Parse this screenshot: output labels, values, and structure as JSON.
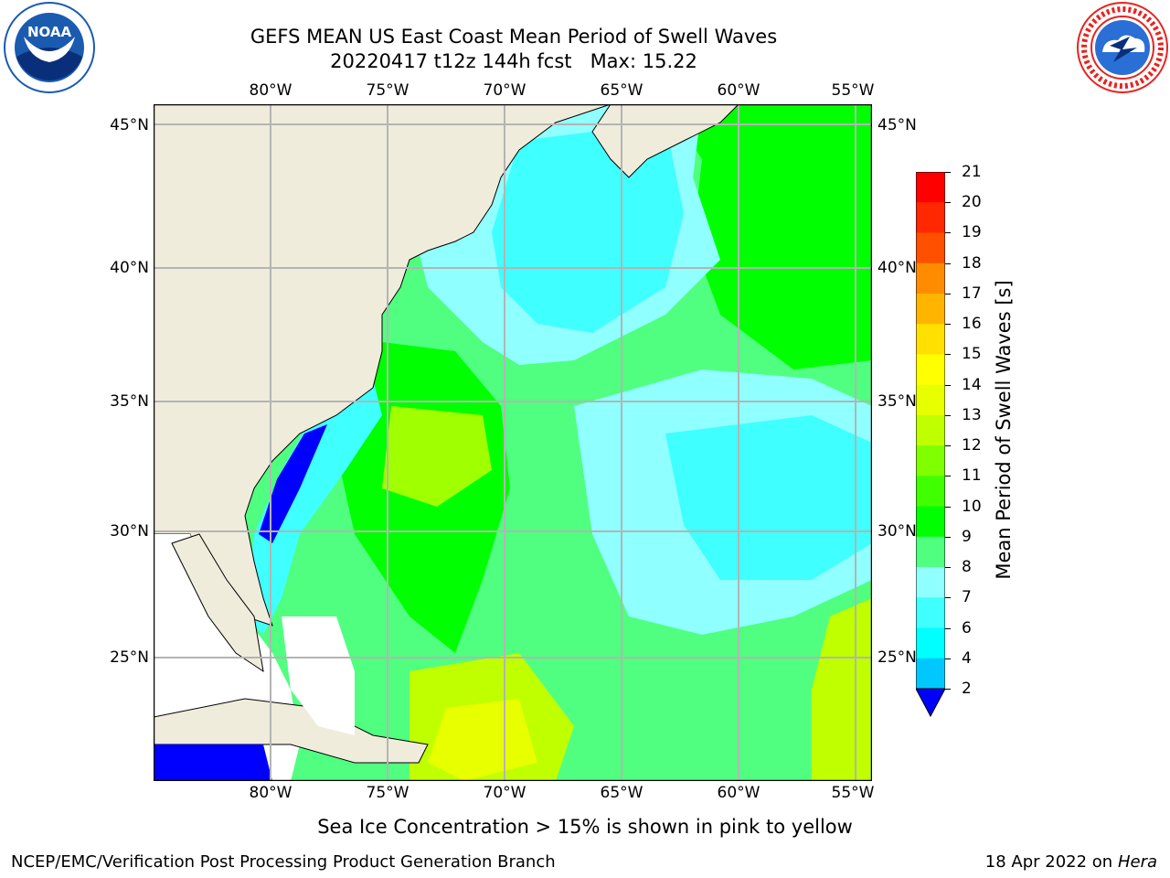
{
  "header": {
    "title_line1": "GEFS MEAN US East Coast Mean Period of Swell Waves",
    "title_line2_date": "20220417 t12z 144h fcst",
    "title_line2_max": "Max: 15.22"
  },
  "logos": {
    "left": {
      "name": "NOAA",
      "color_outer": "#1a5bb0",
      "color_inner": "#0a2f7a"
    },
    "right": {
      "name": "NATIONAL WEATHER SERVICE",
      "color_ring": "#e8231f",
      "color_inner": "#2a6fd6"
    }
  },
  "map": {
    "lon_ticks": [
      "80°W",
      "75°W",
      "70°W",
      "65°W",
      "60°W",
      "55°W"
    ],
    "lat_ticks": [
      "45°N",
      "40°N",
      "35°N",
      "30°N",
      "25°N"
    ],
    "land_color": "#efecdc",
    "ocean_base_color": "#00ff00",
    "grid_color": "#b4b4b4"
  },
  "colorbar": {
    "label": "Mean Period of Swell Waves [s]",
    "ticks": [
      "2",
      "4",
      "6",
      "7",
      "8",
      "9",
      "10",
      "11",
      "12",
      "13",
      "14",
      "15",
      "16",
      "17",
      "18",
      "19",
      "20",
      "21"
    ],
    "colors": [
      "#0000ff",
      "#0060ff",
      "#00c8ff",
      "#00ffff",
      "#40ffff",
      "#90ffff",
      "#50ff80",
      "#00ff00",
      "#40ff00",
      "#80ff00",
      "#c0ff00",
      "#e8ff00",
      "#ffff00",
      "#ffe000",
      "#ffb400",
      "#ff8c00",
      "#ff5000",
      "#ff2800",
      "#ff0000"
    ]
  },
  "footer": {
    "note": "Sea Ice Concentration > 15% is shown in pink to yellow",
    "left": "NCEP/EMC/Verification Post Processing Product Generation Branch",
    "right_date": "18 Apr 2022 on",
    "right_host": "Hera"
  }
}
